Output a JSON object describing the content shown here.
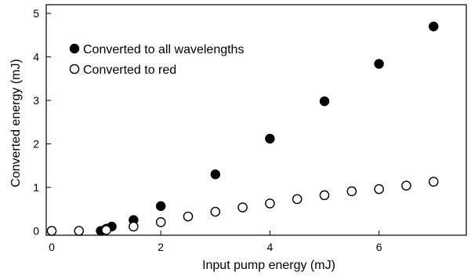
{
  "chart_data": {
    "type": "scatter",
    "xlabel": "Input pump energy (mJ)",
    "ylabel": "Converted energy (mJ)",
    "xlim": [
      -0.1,
      7.6
    ],
    "ylim": [
      -0.1,
      5.2
    ],
    "xticks": [
      0,
      2,
      4,
      6
    ],
    "yticks": [
      0,
      1,
      2,
      3,
      4,
      5
    ],
    "grid": false,
    "legend_position": "top-left",
    "series": [
      {
        "name": "Converted to all wavelengths",
        "marker": "filled-circle",
        "color": "#000000",
        "x": [
          0.9,
          1.0,
          1.1,
          1.5,
          2.0,
          3.0,
          4.0,
          5.0,
          6.0,
          7.0
        ],
        "y": [
          0.0,
          0.05,
          0.1,
          0.25,
          0.57,
          1.3,
          2.12,
          2.98,
          3.84,
          4.7
        ]
      },
      {
        "name": "Converted to red",
        "marker": "open-circle",
        "color": "#000000",
        "x": [
          0.0,
          0.5,
          1.0,
          1.5,
          2.0,
          2.5,
          3.0,
          3.5,
          4.0,
          4.5,
          5.0,
          5.5,
          6.0,
          6.5,
          7.0
        ],
        "y": [
          0.0,
          0.0,
          0.02,
          0.1,
          0.2,
          0.33,
          0.44,
          0.54,
          0.63,
          0.73,
          0.82,
          0.91,
          0.96,
          1.04,
          1.13
        ]
      }
    ]
  }
}
